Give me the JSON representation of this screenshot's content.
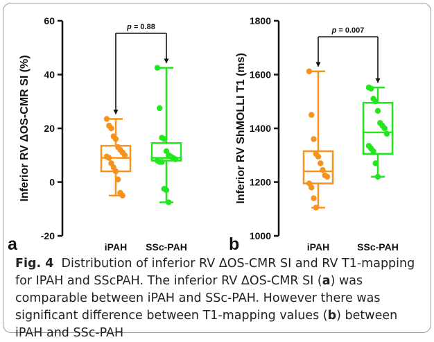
{
  "chart_data": [
    {
      "type": "box",
      "panel_label": "a",
      "ylabel": "Inferior RV ΔOS-CMR SI (%)",
      "ylim": [
        -20,
        60
      ],
      "yticks": [
        -20,
        0,
        20,
        40,
        60
      ],
      "categories": [
        "iPAH",
        "SSc-PAH"
      ],
      "colors": [
        "#f7921e",
        "#22e61e"
      ],
      "annotation": {
        "text": "p = 0.88",
        "p_label": "p",
        "p_value": "= 0.88"
      },
      "boxes": [
        {
          "name": "iPAH",
          "min": -5,
          "q1": 4,
          "median": 9,
          "q3": 13.5,
          "max": 23.5
        },
        {
          "name": "SSc-PAH",
          "min": -7.5,
          "q1": 8,
          "median": 9,
          "q3": 14.5,
          "max": 42.5
        }
      ],
      "points": [
        [
          23.5,
          21,
          20,
          17,
          16,
          13,
          12,
          11,
          10,
          9.5,
          9,
          7,
          5.5,
          4,
          1,
          -4,
          -5
        ],
        [
          42.5,
          27.5,
          16.5,
          16,
          11.5,
          10,
          9.5,
          9,
          8.5,
          8,
          7.5,
          7.5,
          -2.5,
          -3,
          -7.5
        ]
      ]
    },
    {
      "type": "box",
      "panel_label": "b",
      "ylabel": "Inferior RV ShMOLLI T1 (ms)",
      "ylim": [
        1000,
        1800
      ],
      "yticks": [
        1000,
        1200,
        1400,
        1600,
        1800
      ],
      "categories": [
        "iPAH",
        "SSc-PAH"
      ],
      "colors": [
        "#f7921e",
        "#22e61e"
      ],
      "annotation": {
        "text": "p = 0.007",
        "p_label": "p",
        "p_value": "= 0.007"
      },
      "boxes": [
        {
          "name": "iPAH",
          "min": 1105,
          "q1": 1195,
          "median": 1240,
          "q3": 1315,
          "max": 1612
        },
        {
          "name": "SSc-PAH",
          "min": 1220,
          "q1": 1305,
          "median": 1385,
          "q3": 1495,
          "max": 1552
        }
      ],
      "points": [
        [
          1612,
          1450,
          1360,
          1305,
          1295,
          1270,
          1245,
          1225,
          1220,
          1195,
          1180,
          1140,
          1105
        ],
        [
          1552,
          1548,
          1510,
          1500,
          1465,
          1420,
          1410,
          1400,
          1380,
          1335,
          1325,
          1315,
          1270,
          1220
        ]
      ]
    }
  ],
  "caption": {
    "label": "Fig. 4",
    "text_1": "Distribution of inferior RV ΔOS-CMR SI and RV T1-mapping for IPAH and SScPAH. The inferior RV ΔOS-CMR SI (",
    "a": "a",
    "text_2": ") was comparable between iPAH and SSc-PAH. However there was significant difference between T1-mapping values (",
    "b": "b",
    "text_3": ") between iPAH and SSc-PAH"
  }
}
